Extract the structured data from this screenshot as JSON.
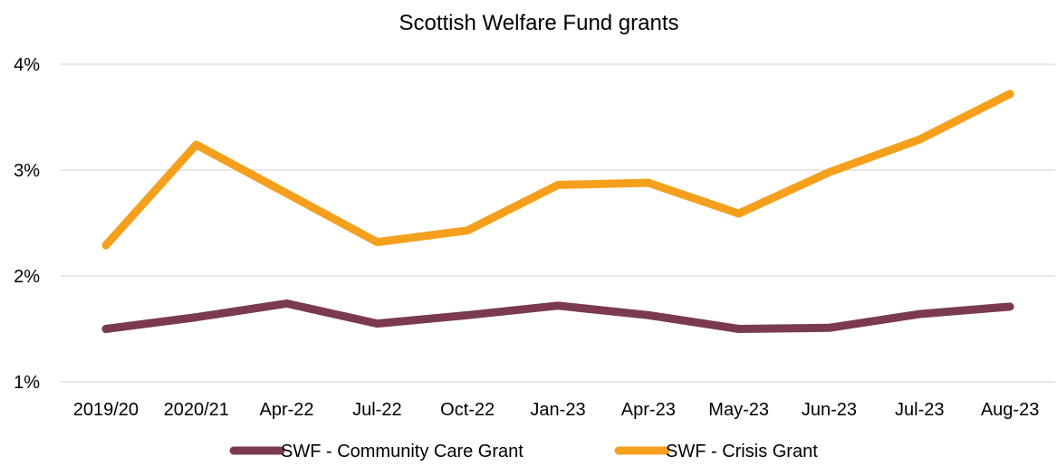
{
  "chart_data": {
    "type": "line",
    "title": "Scottish Welfare Fund grants",
    "xlabel": "",
    "ylabel": "",
    "categories": [
      "2019/20",
      "2020/21",
      "Apr-22",
      "Jul-22",
      "Oct-22",
      "Jan-23",
      "Apr-23",
      "May-23",
      "Jun-23",
      "Jul-23",
      "Aug-23"
    ],
    "y_ticks": [
      "1%",
      "2%",
      "3%",
      "4%"
    ],
    "ylim": [
      1,
      4
    ],
    "grid": true,
    "legend_position": "bottom",
    "series": [
      {
        "name": "SWF - Community Care Grant",
        "color": "#7b3a52",
        "values": [
          1.5,
          1.61,
          1.74,
          1.55,
          1.63,
          1.72,
          1.63,
          1.5,
          1.51,
          1.64,
          1.71
        ]
      },
      {
        "name": "SWF - Crisis Grant",
        "color": "#f5a01d",
        "values": [
          2.29,
          3.24,
          2.78,
          2.32,
          2.43,
          2.86,
          2.88,
          2.59,
          2.98,
          3.29,
          3.72
        ]
      }
    ]
  }
}
